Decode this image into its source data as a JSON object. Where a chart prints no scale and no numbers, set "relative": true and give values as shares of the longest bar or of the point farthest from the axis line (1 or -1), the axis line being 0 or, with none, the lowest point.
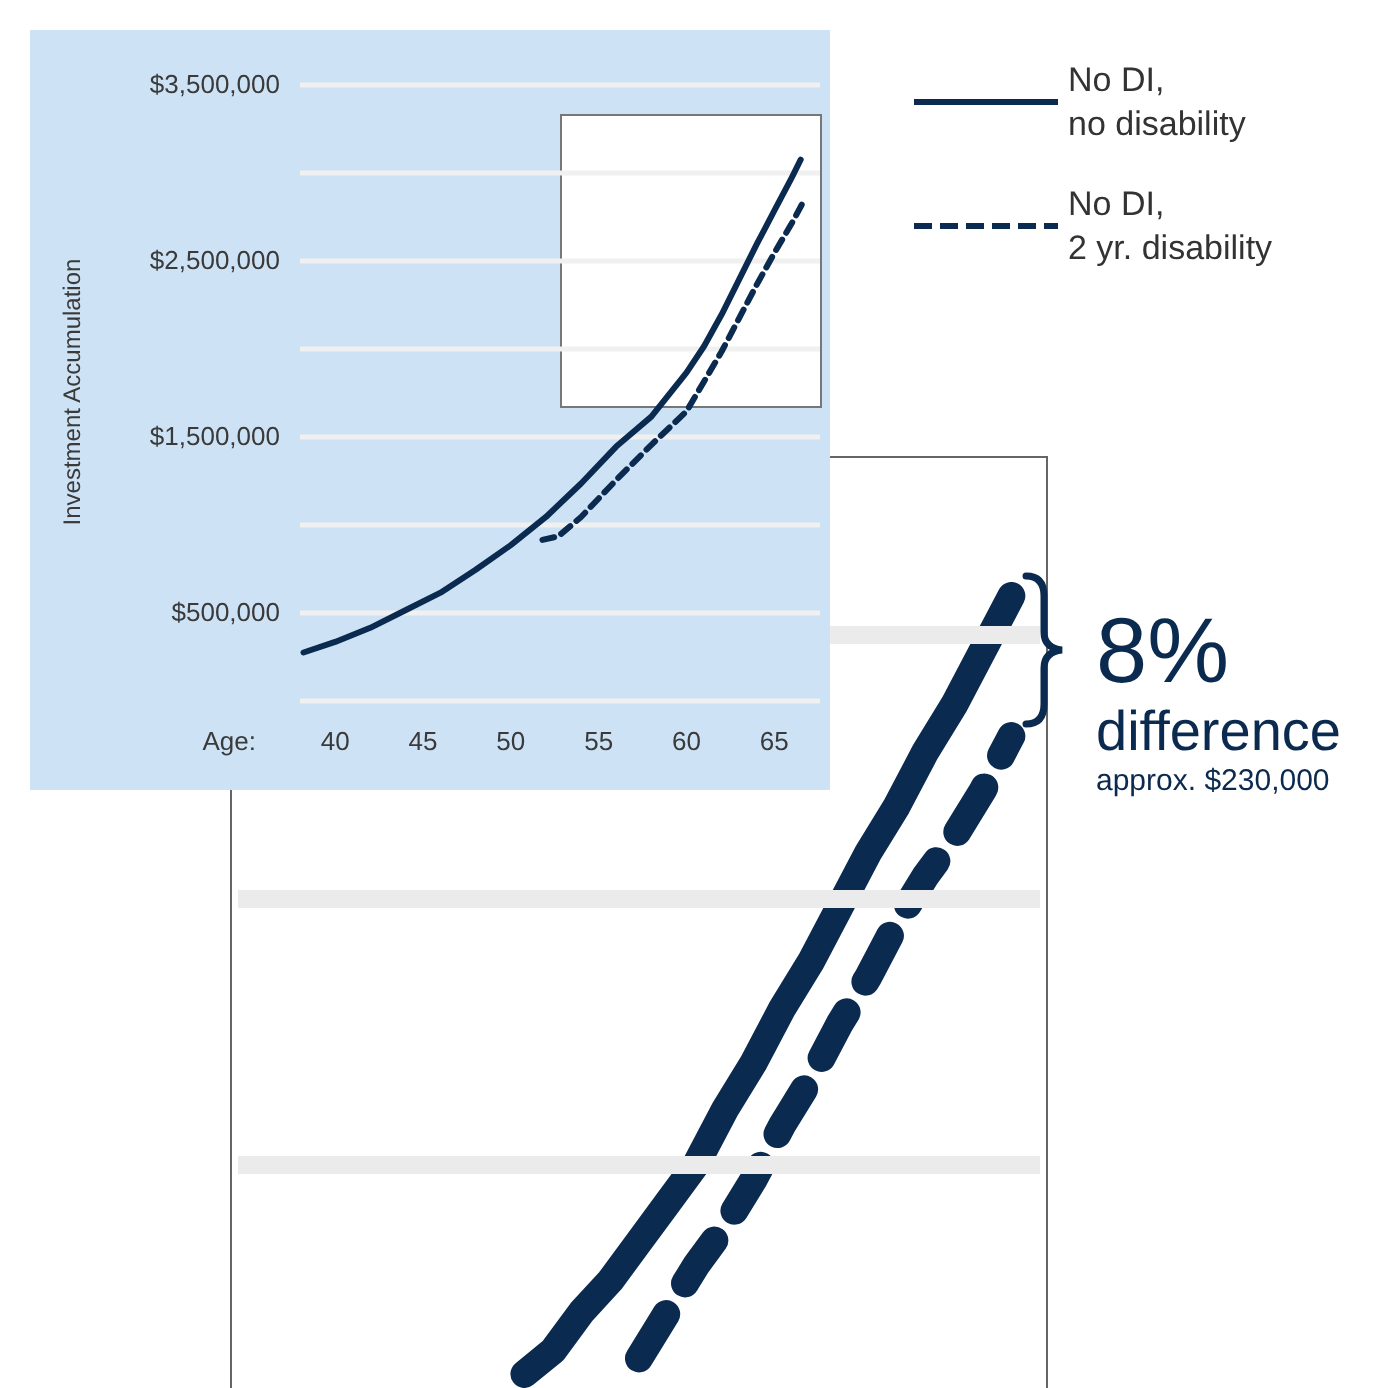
{
  "chart_data": [
    {
      "type": "line",
      "xlabel": "Age:",
      "ylabel": "Investment Accumulation",
      "xlim": [
        38,
        67.6
      ],
      "xticks": [
        40,
        45,
        50,
        55,
        60,
        65
      ],
      "ylim": [
        0,
        3500000
      ],
      "yticks": [
        {
          "value": 0,
          "label": null
        },
        {
          "value": 500000,
          "label": "$500,000"
        },
        {
          "value": 1000000,
          "label": null
        },
        {
          "value": 1500000,
          "label": "$1,500,000"
        },
        {
          "value": 2000000,
          "label": null
        },
        {
          "value": 2500000,
          "label": "$2,500,000"
        },
        {
          "value": 3000000,
          "label": null
        },
        {
          "value": 3500000,
          "label": "$3,500,000"
        }
      ],
      "grid": "y",
      "legend": "top right",
      "marker": "none",
      "series": [
        {
          "name": "No DI,\nno disability",
          "color": "#0b2a4f",
          "line_style": "solid",
          "x": [
            38.2,
            40,
            42,
            44,
            46,
            48,
            50,
            52,
            54,
            56,
            58,
            60,
            61,
            62,
            63,
            64,
            65,
            66,
            66.5
          ],
          "values": [
            270000,
            330000,
            410000,
            510000,
            610000,
            740000,
            880000,
            1040000,
            1230000,
            1440000,
            1610000,
            1860000,
            2010000,
            2190000,
            2390000,
            2590000,
            2780000,
            2970000,
            3070000
          ]
        },
        {
          "name": "No DI,\n2 yr. disability",
          "color": "#0b2a4f",
          "line_style": "dashed",
          "x": [
            51.8,
            52.7,
            54,
            56,
            58,
            60,
            61,
            62,
            63,
            64,
            65,
            66,
            66.7
          ],
          "values": [
            910000,
            930000,
            1040000,
            1250000,
            1450000,
            1640000,
            1810000,
            1980000,
            2170000,
            2360000,
            2540000,
            2710000,
            2840000
          ]
        }
      ]
    },
    {
      "type": "line",
      "relative": true,
      "ref_lines": [
        {
          "axis": "y",
          "value": 0.27,
          "color": "#ebebeb"
        },
        {
          "axis": "y",
          "value": 0.61,
          "color": "#ebebeb"
        },
        {
          "axis": "y",
          "value": 0.95,
          "color": "#ebebeb"
        }
      ],
      "categories": [
        null,
        null,
        null,
        null,
        null,
        null,
        null,
        null,
        null,
        null,
        null,
        null,
        null,
        null,
        null,
        null,
        null,
        null,
        null,
        null,
        null,
        null,
        null,
        null,
        null,
        null,
        null,
        null,
        null
      ],
      "marker": "none",
      "annotations": [
        "8%",
        "difference",
        "approx. $230,000"
      ],
      "series": [
        {
          "color": "#0b2a4f",
          "line_style": "solid",
          "values": [
            null,
            null,
            null,
            null,
            null,
            null,
            null,
            null,
            null,
            null,
            0,
            0.03,
            0.08,
            0.12,
            0.17,
            0.22,
            0.27,
            0.34,
            0.4,
            0.47,
            0.53,
            0.6,
            0.67,
            0.73,
            0.8,
            0.86,
            0.93,
            1,
            null
          ]
        },
        {
          "color": "#0b2a4f",
          "line_style": "dashed",
          "values": [
            null,
            null,
            null,
            null,
            null,
            null,
            null,
            null,
            null,
            null,
            null,
            null,
            null,
            null,
            0.02,
            0.08,
            0.14,
            0.19,
            0.25,
            0.32,
            0.38,
            0.45,
            0.51,
            0.58,
            0.64,
            0.69,
            0.75,
            0.82,
            null
          ]
        }
      ]
    }
  ]
}
